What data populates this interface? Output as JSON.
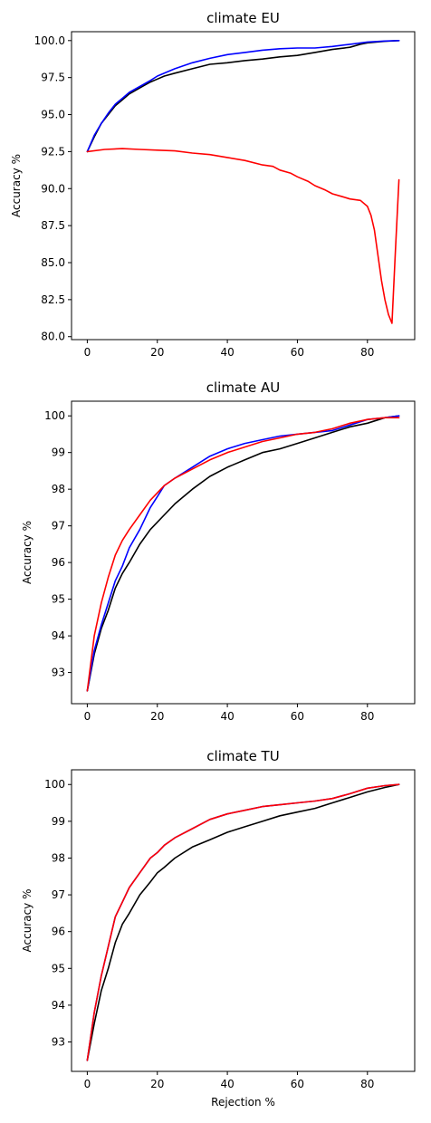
{
  "chart_data": [
    {
      "type": "line",
      "title": "climate EU",
      "xlabel": "",
      "ylabel": "Accuracy %",
      "xlim": [
        -4.5,
        93.5
      ],
      "ylim": [
        79.8,
        100.6
      ],
      "xticks": [
        0,
        20,
        40,
        60,
        80
      ],
      "xtick_labels": [
        "0",
        "20",
        "40",
        "60",
        "80"
      ],
      "yticks": [
        80.0,
        82.5,
        85.0,
        87.5,
        90.0,
        92.5,
        95.0,
        97.5,
        100.0
      ],
      "ytick_labels": [
        "80.0",
        "82.5",
        "85.0",
        "87.5",
        "90.0",
        "92.5",
        "95.0",
        "97.5",
        "100.0"
      ],
      "series": [
        {
          "name": "black",
          "color": "#000000",
          "x": [
            0,
            2,
            4,
            6,
            8,
            10,
            12,
            15,
            18,
            20,
            22,
            25,
            30,
            35,
            40,
            45,
            50,
            55,
            60,
            65,
            70,
            75,
            78,
            80,
            85,
            89
          ],
          "y": [
            92.5,
            93.5,
            94.4,
            95.0,
            95.6,
            96.0,
            96.4,
            96.8,
            97.2,
            97.4,
            97.6,
            97.8,
            98.1,
            98.4,
            98.5,
            98.65,
            98.75,
            98.9,
            99.0,
            99.2,
            99.4,
            99.55,
            99.75,
            99.85,
            99.95,
            100.0
          ]
        },
        {
          "name": "blue",
          "color": "#0000ff",
          "x": [
            0,
            2,
            4,
            6,
            8,
            10,
            12,
            15,
            18,
            20,
            22,
            25,
            30,
            35,
            40,
            45,
            50,
            55,
            60,
            65,
            70,
            75,
            80,
            85,
            89
          ],
          "y": [
            92.5,
            93.6,
            94.4,
            95.1,
            95.7,
            96.1,
            96.5,
            96.9,
            97.3,
            97.6,
            97.8,
            98.1,
            98.5,
            98.8,
            99.05,
            99.2,
            99.35,
            99.45,
            99.5,
            99.5,
            99.6,
            99.75,
            99.9,
            99.97,
            100.0
          ]
        },
        {
          "name": "red",
          "color": "#ff0000",
          "x": [
            0,
            5,
            10,
            15,
            20,
            25,
            30,
            35,
            40,
            45,
            50,
            53,
            55,
            58,
            60,
            63,
            65,
            68,
            70,
            73,
            75,
            78,
            80,
            81,
            82,
            83,
            84,
            85,
            86,
            87,
            88,
            89
          ],
          "y": [
            92.5,
            92.65,
            92.7,
            92.65,
            92.6,
            92.55,
            92.4,
            92.3,
            92.1,
            91.9,
            91.6,
            91.5,
            91.25,
            91.05,
            90.8,
            90.5,
            90.2,
            89.9,
            89.65,
            89.45,
            89.3,
            89.2,
            88.8,
            88.2,
            87.2,
            85.5,
            83.8,
            82.5,
            81.5,
            80.9,
            85.8,
            90.6
          ]
        }
      ]
    },
    {
      "type": "line",
      "title": "climate AU",
      "xlabel": "",
      "ylabel": "Accuracy %",
      "xlim": [
        -4.5,
        93.5
      ],
      "ylim": [
        92.15,
        100.4
      ],
      "xticks": [
        0,
        20,
        40,
        60,
        80
      ],
      "xtick_labels": [
        "0",
        "20",
        "40",
        "60",
        "80"
      ],
      "yticks": [
        93,
        94,
        95,
        96,
        97,
        98,
        99,
        100
      ],
      "ytick_labels": [
        "93",
        "94",
        "95",
        "96",
        "97",
        "98",
        "99",
        "100"
      ],
      "series": [
        {
          "name": "black",
          "color": "#000000",
          "x": [
            0,
            2,
            4,
            6,
            8,
            10,
            12,
            15,
            18,
            20,
            22,
            25,
            30,
            35,
            40,
            45,
            50,
            55,
            60,
            65,
            70,
            75,
            80,
            85,
            89
          ],
          "y": [
            92.5,
            93.5,
            94.2,
            94.7,
            95.3,
            95.7,
            96.0,
            96.5,
            96.9,
            97.1,
            97.3,
            97.6,
            98.0,
            98.35,
            98.6,
            98.8,
            99.0,
            99.1,
            99.25,
            99.4,
            99.55,
            99.7,
            99.8,
            99.95,
            100.0
          ]
        },
        {
          "name": "blue",
          "color": "#0000ff",
          "x": [
            0,
            2,
            4,
            6,
            8,
            10,
            12,
            15,
            18,
            20,
            22,
            25,
            30,
            35,
            40,
            45,
            50,
            55,
            60,
            65,
            70,
            75,
            80,
            85,
            89
          ],
          "y": [
            92.5,
            93.6,
            94.3,
            94.9,
            95.5,
            95.9,
            96.4,
            96.9,
            97.5,
            97.8,
            98.1,
            98.3,
            98.6,
            98.9,
            99.1,
            99.25,
            99.35,
            99.45,
            99.5,
            99.55,
            99.6,
            99.75,
            99.9,
            99.95,
            100.0
          ]
        },
        {
          "name": "red",
          "color": "#ff0000",
          "x": [
            0,
            2,
            4,
            6,
            8,
            10,
            12,
            15,
            18,
            20,
            22,
            25,
            30,
            35,
            40,
            45,
            50,
            55,
            60,
            65,
            70,
            75,
            80,
            85,
            89
          ],
          "y": [
            92.5,
            94.0,
            94.9,
            95.6,
            96.2,
            96.6,
            96.9,
            97.3,
            97.7,
            97.9,
            98.1,
            98.3,
            98.55,
            98.8,
            99.0,
            99.15,
            99.3,
            99.4,
            99.5,
            99.55,
            99.65,
            99.8,
            99.9,
            99.95,
            99.95
          ]
        }
      ]
    },
    {
      "type": "line",
      "title": "climate TU",
      "xlabel": "Rejection %",
      "ylabel": "Accuracy %",
      "xlim": [
        -4.5,
        93.5
      ],
      "ylim": [
        92.2,
        100.4
      ],
      "xticks": [
        0,
        20,
        40,
        60,
        80
      ],
      "xtick_labels": [
        "0",
        "20",
        "40",
        "60",
        "80"
      ],
      "yticks": [
        93,
        94,
        95,
        96,
        97,
        98,
        99,
        100
      ],
      "ytick_labels": [
        "93",
        "94",
        "95",
        "96",
        "97",
        "98",
        "99",
        "100"
      ],
      "series": [
        {
          "name": "black",
          "color": "#000000",
          "x": [
            0,
            2,
            4,
            6,
            8,
            10,
            12,
            15,
            18,
            20,
            22,
            25,
            30,
            35,
            40,
            45,
            50,
            55,
            60,
            65,
            70,
            75,
            80,
            85,
            89
          ],
          "y": [
            92.5,
            93.5,
            94.4,
            95.0,
            95.7,
            96.2,
            96.5,
            97.0,
            97.35,
            97.6,
            97.75,
            98.0,
            98.3,
            98.5,
            98.7,
            98.85,
            99.0,
            99.15,
            99.25,
            99.35,
            99.5,
            99.65,
            99.8,
            99.92,
            100.0
          ]
        },
        {
          "name": "blue",
          "color": "#0000ff",
          "x": [
            0,
            2,
            4,
            6,
            8,
            10,
            12,
            15,
            18,
            20,
            22,
            25,
            30,
            35,
            40,
            45,
            50,
            55,
            60,
            65,
            70,
            75,
            80,
            85,
            89
          ],
          "y": [
            92.5,
            93.8,
            94.8,
            95.6,
            96.4,
            96.8,
            97.2,
            97.6,
            98.0,
            98.15,
            98.35,
            98.55,
            98.8,
            99.05,
            99.2,
            99.3,
            99.4,
            99.45,
            99.5,
            99.55,
            99.62,
            99.75,
            99.9,
            99.97,
            100.0
          ]
        },
        {
          "name": "red",
          "color": "#ff0000",
          "x": [
            0,
            2,
            4,
            6,
            8,
            10,
            12,
            15,
            18,
            20,
            22,
            25,
            30,
            35,
            40,
            45,
            50,
            55,
            60,
            65,
            70,
            75,
            80,
            85,
            89
          ],
          "y": [
            92.5,
            93.8,
            94.8,
            95.6,
            96.4,
            96.8,
            97.2,
            97.6,
            98.0,
            98.15,
            98.35,
            98.55,
            98.8,
            99.05,
            99.2,
            99.3,
            99.4,
            99.45,
            99.5,
            99.55,
            99.62,
            99.75,
            99.9,
            99.97,
            100.0
          ]
        }
      ]
    }
  ]
}
